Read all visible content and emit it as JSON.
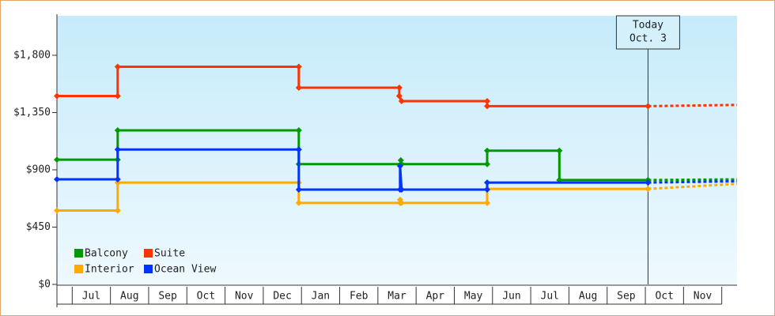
{
  "chart_data": {
    "type": "line",
    "categories": [
      "Jul",
      "Aug",
      "Sep",
      "Oct",
      "Nov",
      "Dec",
      "Jan",
      "Feb",
      "Mar",
      "Apr",
      "May",
      "Jun",
      "Jul",
      "Aug",
      "Sep",
      "Oct",
      "Nov"
    ],
    "xlim": [
      0.6,
      18.4
    ],
    "ylim": [
      0,
      2110
    ],
    "yticks": [
      {
        "value": 0,
        "label": "$0"
      },
      {
        "value": 450,
        "label": "$450"
      },
      {
        "value": 900,
        "label": "$900"
      },
      {
        "value": 1350,
        "label": "$1,350"
      },
      {
        "value": 1800,
        "label": "$1,800"
      }
    ],
    "series": [
      {
        "name": "Balcony",
        "color": "#009a00",
        "x": [
          0.6,
          2.19,
          2.19,
          6.93,
          6.93,
          9.6,
          9.6,
          9.62,
          11.86,
          11.86,
          13.75,
          13.75,
          16.07
        ],
        "values": [
          980,
          980,
          1210,
          1210,
          945,
          945,
          975,
          945,
          945,
          1050,
          1050,
          820,
          820
        ],
        "forecast_x": [
          16.07,
          18.4
        ],
        "forecast_values": [
          820,
          825
        ]
      },
      {
        "name": "Suite",
        "color": "#ff3300",
        "x": [
          0.6,
          2.19,
          2.19,
          6.93,
          6.93,
          9.56,
          9.56,
          9.62,
          11.86,
          11.86,
          16.07
        ],
        "values": [
          1480,
          1480,
          1710,
          1710,
          1545,
          1545,
          1480,
          1440,
          1440,
          1400,
          1400
        ],
        "forecast_x": [
          16.07,
          18.4
        ],
        "forecast_values": [
          1400,
          1410
        ]
      },
      {
        "name": "Interior",
        "color": "#ffaa00",
        "x": [
          0.6,
          2.19,
          2.19,
          6.93,
          6.93,
          9.58,
          9.58,
          9.62,
          11.86,
          11.86,
          16.07
        ],
        "values": [
          580,
          580,
          800,
          800,
          640,
          640,
          665,
          640,
          640,
          750,
          750
        ],
        "forecast_x": [
          16.07,
          18.4
        ],
        "forecast_values": [
          750,
          790
        ]
      },
      {
        "name": "Ocean View",
        "color": "#0033ff",
        "x": [
          0.6,
          2.19,
          2.19,
          6.93,
          6.93,
          9.58,
          9.58,
          9.62,
          11.86,
          11.86,
          16.07
        ],
        "values": [
          825,
          825,
          1060,
          1060,
          745,
          745,
          930,
          745,
          745,
          800,
          800
        ],
        "forecast_x": [
          16.07,
          18.4
        ],
        "forecast_values": [
          800,
          810
        ]
      }
    ],
    "annotation": {
      "x": 16.07,
      "lines": [
        "Today",
        "Oct. 3"
      ]
    },
    "legend": "lower left"
  }
}
